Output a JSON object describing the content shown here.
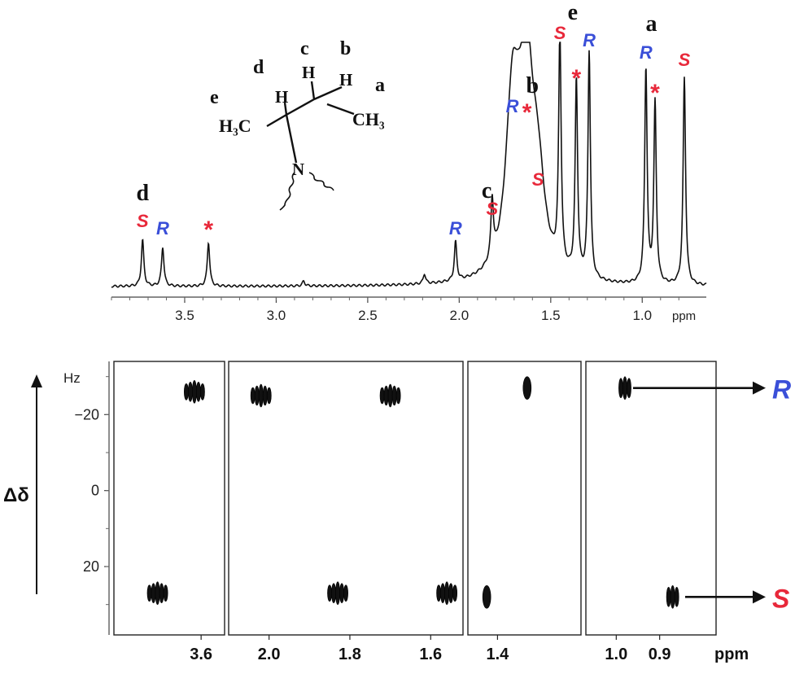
{
  "chart_data": [
    {
      "type": "line",
      "xlabel": "ppm",
      "xlim": [
        3.9,
        0.65
      ],
      "x_reversed": true,
      "x_ticks": [
        "3.5",
        "3.0",
        "2.5",
        "2.0",
        "1.5",
        "1.0"
      ],
      "peaks": [
        {
          "ppm": 3.73,
          "height": 0.19,
          "label": "S",
          "kind": "S"
        },
        {
          "ppm": 3.62,
          "height": 0.16,
          "label": "R",
          "kind": "R"
        },
        {
          "ppm": 3.37,
          "height": 0.18,
          "label": "*",
          "kind": "star"
        },
        {
          "ppm": 2.85,
          "height": 0.02,
          "label": "",
          "kind": ""
        },
        {
          "ppm": 2.19,
          "height": 0.04,
          "label": "",
          "kind": ""
        },
        {
          "ppm": 2.02,
          "height": 0.16,
          "label": "R",
          "kind": "R"
        },
        {
          "ppm": 1.82,
          "height": 0.24,
          "label": "S",
          "kind": "S"
        },
        {
          "ppm": 1.71,
          "height": 0.66,
          "label": "R",
          "kind": "R"
        },
        {
          "ppm": 1.63,
          "height": 0.66,
          "label": "*",
          "kind": "star"
        },
        {
          "ppm": 1.57,
          "height": 0.36,
          "label": "S",
          "kind": "S"
        },
        {
          "ppm": 1.45,
          "height": 0.96,
          "label": "S",
          "kind": "S"
        },
        {
          "ppm": 1.36,
          "height": 0.8,
          "label": "*",
          "kind": "star"
        },
        {
          "ppm": 1.29,
          "height": 0.93,
          "label": "R",
          "kind": "R"
        },
        {
          "ppm": 0.98,
          "height": 0.88,
          "label": "R",
          "kind": "R"
        },
        {
          "ppm": 0.93,
          "height": 0.74,
          "label": "*",
          "kind": "star"
        },
        {
          "ppm": 0.77,
          "height": 0.85,
          "label": "S",
          "kind": "S"
        }
      ],
      "group_labels": [
        {
          "ppm": 3.73,
          "text": "d"
        },
        {
          "ppm": 1.85,
          "text": "c"
        },
        {
          "ppm": 1.6,
          "text": "b"
        },
        {
          "ppm": 1.38,
          "text": "e"
        },
        {
          "ppm": 0.95,
          "text": "a"
        }
      ],
      "structure": {
        "labels": [
          "e",
          "d",
          "c",
          "b",
          "a"
        ],
        "atoms": [
          "H₃C",
          "H",
          "H",
          "H",
          "CH₃",
          "N"
        ]
      }
    },
    {
      "type": "scatter",
      "xlabel": "ppm",
      "ylabel": "Δδ",
      "y_unit": "Hz",
      "ylim": [
        -34,
        38
      ],
      "y_ticks": [
        "−20",
        "0",
        "20"
      ],
      "panels": [
        {
          "x_ticks": [
            "3.6"
          ],
          "xlim": [
            3.86,
            3.53
          ]
        },
        {
          "x_ticks": [
            "2.0",
            "1.8",
            "1.6"
          ],
          "xlim": [
            2.1,
            1.52
          ]
        },
        {
          "x_ticks": [
            "1.4"
          ],
          "xlim": [
            1.51,
            1.09
          ]
        },
        {
          "x_ticks": [
            "1.0",
            "0.9"
          ],
          "xlim": [
            1.07,
            0.77
          ]
        }
      ],
      "series": [
        {
          "name": "R",
          "points": [
            {
              "panel": 0,
              "ppm": 3.62,
              "dd": -26
            },
            {
              "panel": 1,
              "ppm": 2.02,
              "dd": -25
            },
            {
              "panel": 1,
              "ppm": 1.7,
              "dd": -25
            },
            {
              "panel": 2,
              "ppm": 1.29,
              "dd": -27
            },
            {
              "panel": 3,
              "ppm": 0.98,
              "dd": -27
            }
          ]
        },
        {
          "name": "S",
          "points": [
            {
              "panel": 0,
              "ppm": 3.73,
              "dd": 27
            },
            {
              "panel": 1,
              "ppm": 1.83,
              "dd": 27
            },
            {
              "panel": 1,
              "ppm": 1.56,
              "dd": 27
            },
            {
              "panel": 2,
              "ppm": 1.44,
              "dd": 28
            },
            {
              "panel": 3,
              "ppm": 0.87,
              "dd": 28
            }
          ]
        }
      ],
      "arrows": [
        {
          "label": "R",
          "dd": -27
        },
        {
          "label": "S",
          "dd": 28
        }
      ]
    }
  ],
  "colors": {
    "R": "#3a4fd8",
    "S": "#e8283a",
    "star": "#e8283a",
    "line": "#111111"
  }
}
